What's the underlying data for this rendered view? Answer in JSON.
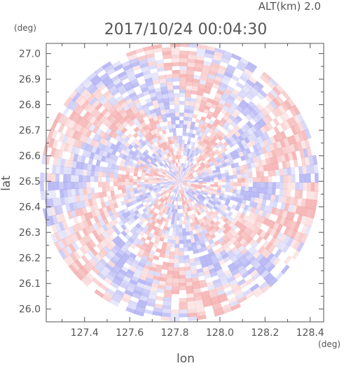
{
  "chart_data": {
    "type": "heatmap",
    "title": "2017/10/24 00:04:30",
    "subtitle": "ALT(km) 2.0",
    "xlabel": "lon",
    "ylabel": "lat",
    "x_unit": "(deg)",
    "y_unit": "(deg)",
    "xlim": [
      127.23,
      128.46
    ],
    "ylim": [
      25.95,
      27.04
    ],
    "x_ticks": [
      127.4,
      127.6,
      127.8,
      128.0,
      128.2,
      128.4
    ],
    "x_tick_labels": [
      "127.4",
      "127.6",
      "127.8",
      "128.0",
      "128.2",
      "128.4"
    ],
    "y_ticks": [
      26.0,
      26.1,
      26.2,
      26.3,
      26.4,
      26.5,
      26.6,
      26.7,
      26.8,
      26.9,
      27.0
    ],
    "y_tick_labels": [
      "26.0",
      "26.1",
      "26.2",
      "26.3",
      "26.4",
      "26.5",
      "26.6",
      "26.7",
      "26.8",
      "26.9",
      "27.0"
    ],
    "grid": false,
    "radar_center": {
      "lon": 127.82,
      "lat": 26.497
    },
    "radar_range_lat_deg": 0.545,
    "colors": {
      "positive": "#f29a9a",
      "negative": "#9c9cf0",
      "axes": "#555555",
      "background": "#ffffff"
    }
  }
}
